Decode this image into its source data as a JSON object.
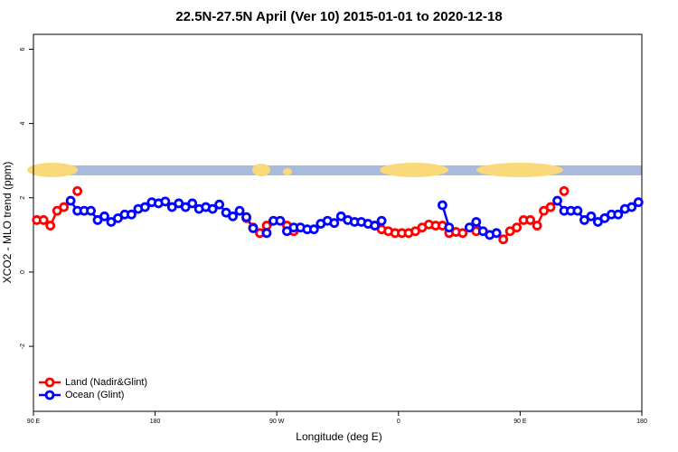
{
  "chart_data": {
    "type": "line",
    "title": "22.5N-27.5N April (Ver 10)   2015-01-01 to 2020-12-18",
    "x_label": "Longitude (deg E)",
    "y_label": "XCO2 - MLO trend (ppm)",
    "x": [
      92.5,
      97.5,
      102.5,
      107.5,
      112.5,
      117.5,
      122.5,
      127.5,
      132.5,
      137.5,
      142.5,
      147.5,
      152.5,
      157.5,
      162.5,
      167.5,
      172.5,
      177.5,
      182.5,
      187.5,
      192.5,
      197.5,
      202.5,
      207.5,
      212.5,
      217.5,
      222.5,
      227.5,
      232.5,
      237.5,
      242.5,
      247.5,
      252.5,
      257.5,
      262.5,
      267.5,
      272.5,
      277.5,
      282.5,
      287.5,
      292.5,
      297.5,
      302.5,
      307.5,
      312.5,
      317.5,
      322.5,
      327.5,
      332.5,
      337.5,
      342.5,
      347.5,
      352.5,
      357.5,
      362.5,
      367.5,
      372.5,
      377.5,
      382.5,
      387.5,
      392.5,
      397.5,
      402.5,
      407.5,
      412.5,
      417.5,
      422.5,
      427.5,
      432.5,
      437.5,
      442.5,
      447.5,
      452.5,
      457.5,
      462.5,
      467.5,
      472.5,
      477.5,
      482.5,
      487.5,
      492.5,
      497.5,
      502.5,
      507.5,
      512.5,
      517.5,
      522.5,
      527.5,
      532.5,
      537.5
    ],
    "series": [
      {
        "name": "Land (Nadir&Glint)",
        "color": "#ff0000",
        "values": [
          1.4,
          1.4,
          1.25,
          1.65,
          1.75,
          null,
          2.18,
          null,
          null,
          null,
          null,
          null,
          null,
          null,
          null,
          null,
          null,
          null,
          null,
          null,
          null,
          null,
          null,
          null,
          null,
          null,
          null,
          null,
          null,
          null,
          null,
          1.45,
          1.2,
          1.05,
          1.25,
          null,
          null,
          1.25,
          1.1,
          null,
          null,
          null,
          null,
          null,
          null,
          null,
          null,
          null,
          null,
          null,
          null,
          1.15,
          1.1,
          1.05,
          1.05,
          1.05,
          1.1,
          1.2,
          1.28,
          1.25,
          1.25,
          1.05,
          1.08,
          1.05,
          null,
          1.1,
          null,
          1.0,
          null,
          0.88,
          1.1,
          1.2,
          1.4,
          1.4,
          1.25,
          1.65,
          1.75,
          null,
          2.18,
          null,
          null,
          null,
          null,
          null,
          null,
          null,
          null,
          null,
          null,
          null
        ]
      },
      {
        "name": "Ocean (Glint)",
        "color": "#0000ff",
        "values": [
          null,
          null,
          null,
          null,
          null,
          1.92,
          1.65,
          1.65,
          1.65,
          1.4,
          1.5,
          1.35,
          1.45,
          1.55,
          1.55,
          1.7,
          1.75,
          1.88,
          1.85,
          1.9,
          1.75,
          1.85,
          1.75,
          1.85,
          1.7,
          1.75,
          1.7,
          1.82,
          1.6,
          1.5,
          1.65,
          1.48,
          1.18,
          null,
          1.05,
          1.38,
          1.38,
          1.1,
          1.2,
          1.2,
          1.15,
          1.15,
          1.3,
          1.38,
          1.32,
          1.5,
          1.4,
          1.35,
          1.35,
          1.3,
          1.25,
          1.38,
          null,
          null,
          null,
          null,
          null,
          null,
          null,
          null,
          1.8,
          1.2,
          null,
          null,
          1.2,
          1.35,
          1.1,
          1.0,
          1.05,
          null,
          null,
          null,
          null,
          null,
          null,
          null,
          null,
          1.92,
          1.65,
          1.65,
          1.65,
          1.4,
          1.5,
          1.35,
          1.45,
          1.55,
          1.55,
          1.7,
          1.75,
          1.88
        ]
      }
    ],
    "xlim": [
      90,
      540
    ],
    "xticks": [
      {
        "value": 90,
        "label": "90 E"
      },
      180,
      {
        "value": 270,
        "label": "90 W"
      },
      {
        "value": 360,
        "label": "0"
      },
      {
        "value": 450,
        "label": "90 E"
      },
      {
        "value": 540,
        "label": "180"
      }
    ],
    "ylim": [
      -3.75,
      6.4
    ],
    "yticks": [
      -2,
      0,
      2,
      4,
      6
    ],
    "legend": "bottom-left"
  }
}
